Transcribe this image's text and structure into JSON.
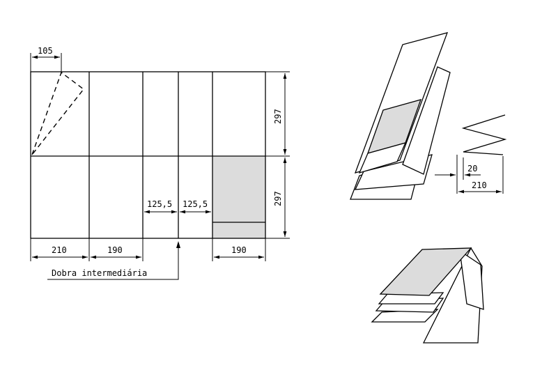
{
  "dimensions": {
    "top_105": "105",
    "right_297_top": "297",
    "right_297_bottom": "297",
    "mid_125_left": "125,5",
    "mid_125_right": "125,5",
    "bottom_210": "210",
    "bottom_190_a": "190",
    "bottom_190_b": "190",
    "side_20": "20",
    "side_210": "210"
  },
  "labels": {
    "intermediate_fold": "Dobra intermediária"
  },
  "colors": {
    "line": "#000000",
    "shade": "#dcdcdc",
    "background": "#ffffff"
  }
}
